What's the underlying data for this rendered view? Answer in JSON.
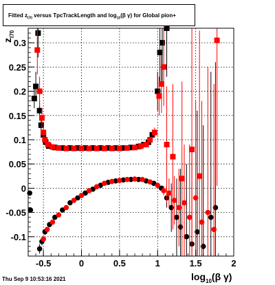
{
  "chart_data": {
    "type": "scatter",
    "title_parts": {
      "a": "Fitted  z",
      "a_sub": "I70",
      "b": "  versus TpcTrackLength and log",
      "b_sub": "10",
      "c": "(β γ) for Global pion+"
    },
    "ylabel_main": "z",
    "ylabel_sub": "I70",
    "xlabel_main": "log",
    "xlabel_sub": "10",
    "xlabel_rest": "(β γ)",
    "xlim": [
      -0.7,
      2.0
    ],
    "ylim": [
      -0.14,
      0.33
    ],
    "xticks": [
      -0.5,
      0,
      0.5,
      1,
      1.5,
      2
    ],
    "xtick_labels": [
      "-0.5",
      "0",
      "0.5",
      "1",
      "1.5",
      "2"
    ],
    "yticks": [
      -0.1,
      -0.05,
      0,
      0.05,
      0.1,
      0.15,
      0.2,
      0.25,
      0.3
    ],
    "ytick_labels": [
      "-0.1",
      "-0.05",
      "0",
      "0.05",
      "0.1",
      "0.15",
      "0.2",
      "0.25",
      "0.3"
    ],
    "grid": true,
    "series": [
      {
        "color": "#000000",
        "marker": "circle",
        "points": [
          [
            -0.68,
            -0.01
          ],
          [
            -0.67,
            -0.045
          ],
          [
            -0.55,
            -0.125
          ],
          [
            -0.52,
            -0.11
          ],
          [
            -0.48,
            -0.09
          ],
          [
            -0.42,
            -0.075
          ],
          [
            -0.35,
            -0.06
          ],
          [
            -0.25,
            -0.045
          ],
          [
            -0.15,
            -0.03
          ],
          [
            -0.05,
            -0.02
          ],
          [
            0.05,
            -0.01
          ],
          [
            0.15,
            -0.002
          ],
          [
            0.25,
            0.006
          ],
          [
            0.35,
            0.012
          ],
          [
            0.45,
            0.015
          ],
          [
            0.55,
            0.017
          ],
          [
            0.65,
            0.018
          ],
          [
            0.75,
            0.018
          ],
          [
            0.85,
            0.015
          ],
          [
            0.95,
            0.01
          ],
          [
            1.05,
            0.0
          ],
          [
            1.12,
            -0.02
          ],
          [
            1.18,
            -0.04
          ],
          [
            1.25,
            -0.06
          ],
          [
            1.3,
            -0.08
          ],
          [
            1.38,
            -0.1
          ],
          [
            1.45,
            -0.115
          ],
          [
            1.52,
            -0.09
          ],
          [
            1.6,
            -0.12
          ],
          [
            1.7,
            -0.06
          ],
          [
            1.76,
            -0.04
          ]
        ],
        "errors": [
          0,
          0,
          0.01,
          0.008,
          0.006,
          0.005,
          0.004,
          0.003,
          0.002,
          0.002,
          0.002,
          0.002,
          0.002,
          0.002,
          0.002,
          0.002,
          0.002,
          0.002,
          0.002,
          0.003,
          0.005,
          0.02,
          0.05,
          0.08,
          0.12,
          0.15,
          0.2,
          0.25,
          0.25,
          0.3,
          0.3
        ]
      },
      {
        "color": "#000000",
        "marker": "square",
        "points": [
          [
            -0.62,
            0.185
          ],
          [
            -0.6,
            0.21
          ],
          [
            -0.57,
            0.32
          ],
          [
            -0.55,
            0.16
          ],
          [
            -0.53,
            0.13
          ],
          [
            -0.5,
            0.11
          ],
          [
            -0.47,
            0.095
          ],
          [
            -0.43,
            0.087
          ],
          [
            -0.35,
            0.084
          ],
          [
            -0.25,
            0.083
          ],
          [
            -0.15,
            0.083
          ],
          [
            -0.05,
            0.083
          ],
          [
            0.05,
            0.083
          ],
          [
            0.15,
            0.083
          ],
          [
            0.25,
            0.083
          ],
          [
            0.35,
            0.083
          ],
          [
            0.45,
            0.083
          ],
          [
            0.55,
            0.083
          ],
          [
            0.65,
            0.084
          ],
          [
            0.75,
            0.086
          ],
          [
            0.82,
            0.09
          ],
          [
            0.88,
            0.095
          ],
          [
            0.93,
            0.11
          ],
          [
            1.0,
            0.2
          ],
          [
            1.03,
            0.28
          ],
          [
            1.06,
            0.3
          ],
          [
            1.12,
            0.33
          ]
        ],
        "errors": [
          0.02,
          0.03,
          0.05,
          0.02,
          0.015,
          0.01,
          0.006,
          0.004,
          0.003,
          0.002,
          0.002,
          0.002,
          0.002,
          0.002,
          0.002,
          0.002,
          0.002,
          0.002,
          0.002,
          0.003,
          0.004,
          0.006,
          0.01,
          0.04,
          0.06,
          0.08,
          0.1
        ]
      },
      {
        "color": "#ff0000",
        "marker": "circle",
        "points": [
          [
            -0.5,
            -0.105
          ],
          [
            -0.45,
            -0.085
          ],
          [
            -0.38,
            -0.07
          ],
          [
            -0.3,
            -0.055
          ],
          [
            -0.2,
            -0.04
          ],
          [
            -0.1,
            -0.025
          ],
          [
            0.0,
            -0.015
          ],
          [
            0.1,
            -0.005
          ],
          [
            0.2,
            0.003
          ],
          [
            0.3,
            0.01
          ],
          [
            0.4,
            0.014
          ],
          [
            0.5,
            0.016
          ],
          [
            0.6,
            0.018
          ],
          [
            0.7,
            0.019
          ],
          [
            0.8,
            0.018
          ],
          [
            0.9,
            0.013
          ],
          [
            1.0,
            0.006
          ],
          [
            1.08,
            -0.005
          ],
          [
            1.15,
            -0.01
          ],
          [
            1.22,
            -0.025
          ],
          [
            1.28,
            -0.04
          ],
          [
            1.35,
            -0.03
          ],
          [
            1.42,
            -0.06
          ],
          [
            1.5,
            -0.02
          ],
          [
            1.58,
            -0.07
          ],
          [
            1.66,
            -0.05
          ],
          [
            1.74,
            -0.085
          ]
        ],
        "errors": [
          0.006,
          0.005,
          0.004,
          0.003,
          0.003,
          0.002,
          0.002,
          0.002,
          0.002,
          0.002,
          0.002,
          0.002,
          0.002,
          0.002,
          0.002,
          0.003,
          0.004,
          0.01,
          0.03,
          0.05,
          0.08,
          0.12,
          0.15,
          0.2,
          0.25,
          0.3,
          0.3
        ]
      },
      {
        "color": "#ff0000",
        "marker": "square",
        "points": [
          [
            -0.58,
            0.285
          ],
          [
            -0.55,
            0.2
          ],
          [
            -0.52,
            0.145
          ],
          [
            -0.5,
            0.115
          ],
          [
            -0.48,
            0.1
          ],
          [
            -0.44,
            0.09
          ],
          [
            -0.38,
            0.085
          ],
          [
            -0.3,
            0.083
          ],
          [
            -0.2,
            0.082
          ],
          [
            -0.1,
            0.082
          ],
          [
            0.0,
            0.082
          ],
          [
            0.1,
            0.082
          ],
          [
            0.2,
            0.082
          ],
          [
            0.3,
            0.082
          ],
          [
            0.4,
            0.082
          ],
          [
            0.5,
            0.082
          ],
          [
            0.6,
            0.083
          ],
          [
            0.7,
            0.084
          ],
          [
            0.78,
            0.087
          ],
          [
            0.85,
            0.09
          ],
          [
            0.9,
            0.1
          ],
          [
            0.96,
            0.115
          ],
          [
            1.02,
            0.19
          ],
          [
            1.05,
            0.215
          ],
          [
            1.08,
            0.25
          ],
          [
            1.12,
            0.09
          ],
          [
            1.2,
            0.065
          ],
          [
            1.32,
            0.02
          ],
          [
            1.45,
            0.08
          ],
          [
            1.55,
            0.025
          ],
          [
            1.78,
            0.305
          ]
        ],
        "errors": [
          0.05,
          0.03,
          0.02,
          0.012,
          0.008,
          0.005,
          0.003,
          0.002,
          0.002,
          0.002,
          0.002,
          0.002,
          0.002,
          0.002,
          0.002,
          0.002,
          0.002,
          0.002,
          0.003,
          0.004,
          0.006,
          0.01,
          0.04,
          0.06,
          0.08,
          0.12,
          0.15,
          0.2,
          0.25,
          0.3,
          0.3
        ]
      }
    ]
  },
  "footer": {
    "datetime": "Thu Sep  9 10:53:16 2021"
  }
}
